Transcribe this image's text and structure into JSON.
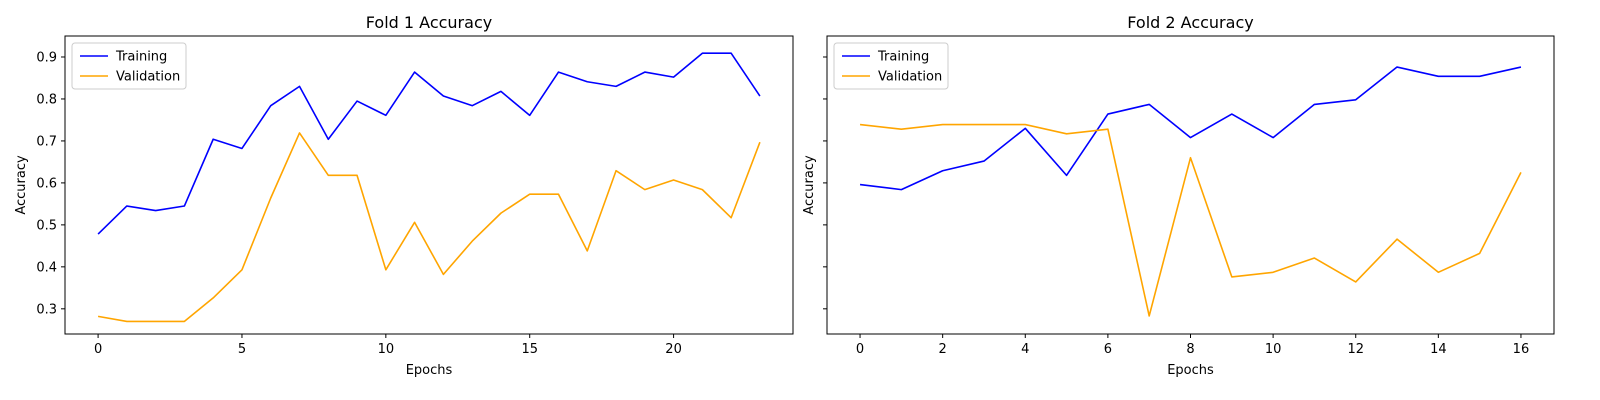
{
  "colors": {
    "training": "#0000ff",
    "validation": "#ffa500",
    "axes": "#000000",
    "background": "#ffffff"
  },
  "chart_data": [
    {
      "type": "line",
      "title": "Fold 1 Accuracy",
      "xlabel": "Epochs",
      "ylabel": "Accuracy",
      "xlim": [
        -1.15,
        24.15
      ],
      "ylim": [
        0.24,
        0.95
      ],
      "xticks": [
        0,
        5,
        10,
        15,
        20
      ],
      "yticks": [
        0.3,
        0.4,
        0.5,
        0.6,
        0.7,
        0.8,
        0.9
      ],
      "ytick_labels_visible": true,
      "grid": false,
      "legend_position": "upper left",
      "series": [
        {
          "name": "Training",
          "color": "#0000ff",
          "x": [
            0,
            1,
            2,
            3,
            4,
            5,
            6,
            7,
            8,
            9,
            10,
            11,
            12,
            13,
            14,
            15,
            16,
            17,
            18,
            19,
            20,
            21,
            22,
            23
          ],
          "y": [
            0.478,
            0.545,
            0.534,
            0.545,
            0.704,
            0.682,
            0.784,
            0.83,
            0.704,
            0.795,
            0.761,
            0.864,
            0.807,
            0.784,
            0.818,
            0.761,
            0.864,
            0.841,
            0.83,
            0.864,
            0.852,
            0.909,
            0.909,
            0.807
          ]
        },
        {
          "name": "Validation",
          "color": "#ffa500",
          "x": [
            0,
            1,
            2,
            3,
            4,
            5,
            6,
            7,
            8,
            9,
            10,
            11,
            12,
            13,
            14,
            15,
            16,
            17,
            18,
            19,
            20,
            21,
            22,
            23
          ],
          "y": [
            0.282,
            0.27,
            0.27,
            0.27,
            0.326,
            0.393,
            0.564,
            0.719,
            0.618,
            0.618,
            0.393,
            0.506,
            0.382,
            0.461,
            0.528,
            0.573,
            0.573,
            0.438,
            0.629,
            0.584,
            0.607,
            0.584,
            0.517,
            0.697
          ]
        }
      ]
    },
    {
      "type": "line",
      "title": "Fold 2 Accuracy",
      "xlabel": "Epochs",
      "ylabel": "Accuracy",
      "xlim": [
        -0.8,
        16.8
      ],
      "ylim": [
        0.24,
        0.95
      ],
      "xticks": [
        0,
        2,
        4,
        6,
        8,
        10,
        12,
        14,
        16
      ],
      "yticks": [
        0.3,
        0.4,
        0.5,
        0.6,
        0.7,
        0.8,
        0.9
      ],
      "ytick_labels_visible": false,
      "grid": false,
      "legend_position": "upper left",
      "series": [
        {
          "name": "Training",
          "color": "#0000ff",
          "x": [
            0,
            1,
            2,
            3,
            4,
            5,
            6,
            7,
            8,
            9,
            10,
            11,
            12,
            13,
            14,
            15,
            16
          ],
          "y": [
            0.596,
            0.584,
            0.629,
            0.652,
            0.73,
            0.618,
            0.764,
            0.787,
            0.708,
            0.764,
            0.708,
            0.787,
            0.798,
            0.876,
            0.854,
            0.854,
            0.876
          ]
        },
        {
          "name": "Validation",
          "color": "#ffa500",
          "x": [
            0,
            1,
            2,
            3,
            4,
            5,
            6,
            7,
            8,
            9,
            10,
            11,
            12,
            13,
            14,
            15,
            16
          ],
          "y": [
            0.739,
            0.728,
            0.739,
            0.739,
            0.739,
            0.717,
            0.728,
            0.283,
            0.66,
            0.376,
            0.387,
            0.421,
            0.364,
            0.466,
            0.387,
            0.432,
            0.625
          ]
        }
      ]
    }
  ]
}
